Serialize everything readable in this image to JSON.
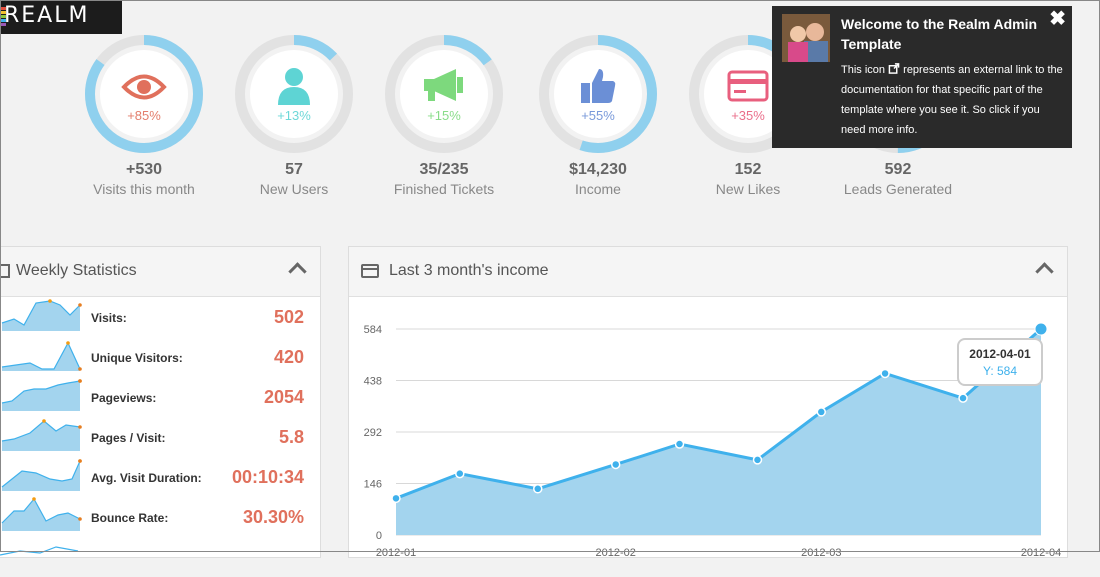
{
  "brand": {
    "logo_text": "REALM",
    "stripe_colors": [
      "#e34f3e",
      "#f2c230",
      "#8dc63f",
      "#3fb1ec",
      "#9b59b6"
    ]
  },
  "stats": [
    {
      "icon": "eye-icon",
      "percent": "+85%",
      "progress": 0.85,
      "value": "+530",
      "label": "Visits this month",
      "color": "#e0705c"
    },
    {
      "icon": "user-icon",
      "percent": "+13%",
      "progress": 0.13,
      "value": "57",
      "label": "New Users",
      "color": "#5ed4d4"
    },
    {
      "icon": "megaphone-icon",
      "percent": "+15%",
      "progress": 0.15,
      "value": "35/235",
      "label": "Finished Tickets",
      "color": "#7dd97d"
    },
    {
      "icon": "thumbs-up-icon",
      "percent": "+55%",
      "progress": 0.55,
      "value": "$14,230",
      "label": "Income",
      "color": "#6b8fd6"
    },
    {
      "icon": "credit-card-icon",
      "percent": "+35%",
      "progress": 0.35,
      "value": "152",
      "label": "New Likes",
      "color": "#e85f7e"
    },
    {
      "icon": "leads-icon",
      "percent": "",
      "progress": 0.5,
      "value": "592",
      "label": "Leads Generated",
      "color": "#3fb1ec"
    }
  ],
  "weekly": {
    "title": "Weekly Statistics",
    "rows": [
      {
        "label": "Visits:",
        "value": "502"
      },
      {
        "label": "Unique Visitors:",
        "value": "420"
      },
      {
        "label": "Pageviews:",
        "value": "2054"
      },
      {
        "label": "Pages / Visit:",
        "value": "5.8"
      },
      {
        "label": "Avg. Visit Duration:",
        "value": "00:10:34"
      },
      {
        "label": "Bounce Rate:",
        "value": "30.30%"
      }
    ]
  },
  "income": {
    "title": "Last 3 month's income",
    "tooltip": {
      "date": "2012-04-01",
      "y": "Y: 584"
    }
  },
  "welcome": {
    "title": "Welcome to the Realm Admin Template",
    "body_before": "This icon",
    "body_after": "represents an external link to the documentation for that specific part of the template where you see it. So click if you need more info."
  },
  "chart_data": {
    "type": "area",
    "title": "",
    "xlabel": "",
    "ylabel": "",
    "x_ticks": [
      "2012-01",
      "2012-02",
      "2012-03",
      "2012-04"
    ],
    "y_ticks": [
      0,
      146,
      292,
      438,
      584
    ],
    "ylim": [
      0,
      584
    ],
    "x": [
      "2012-01-01",
      "2012-01-10",
      "2012-01-21",
      "2012-02-01",
      "2012-02-10",
      "2012-02-21",
      "2012-03-01",
      "2012-03-10",
      "2012-03-21",
      "2012-04-01"
    ],
    "values": [
      104,
      174,
      131,
      200,
      258,
      213,
      349,
      458,
      388,
      584
    ],
    "color": "#3fb1ec",
    "fill": "#a3d4ee"
  }
}
